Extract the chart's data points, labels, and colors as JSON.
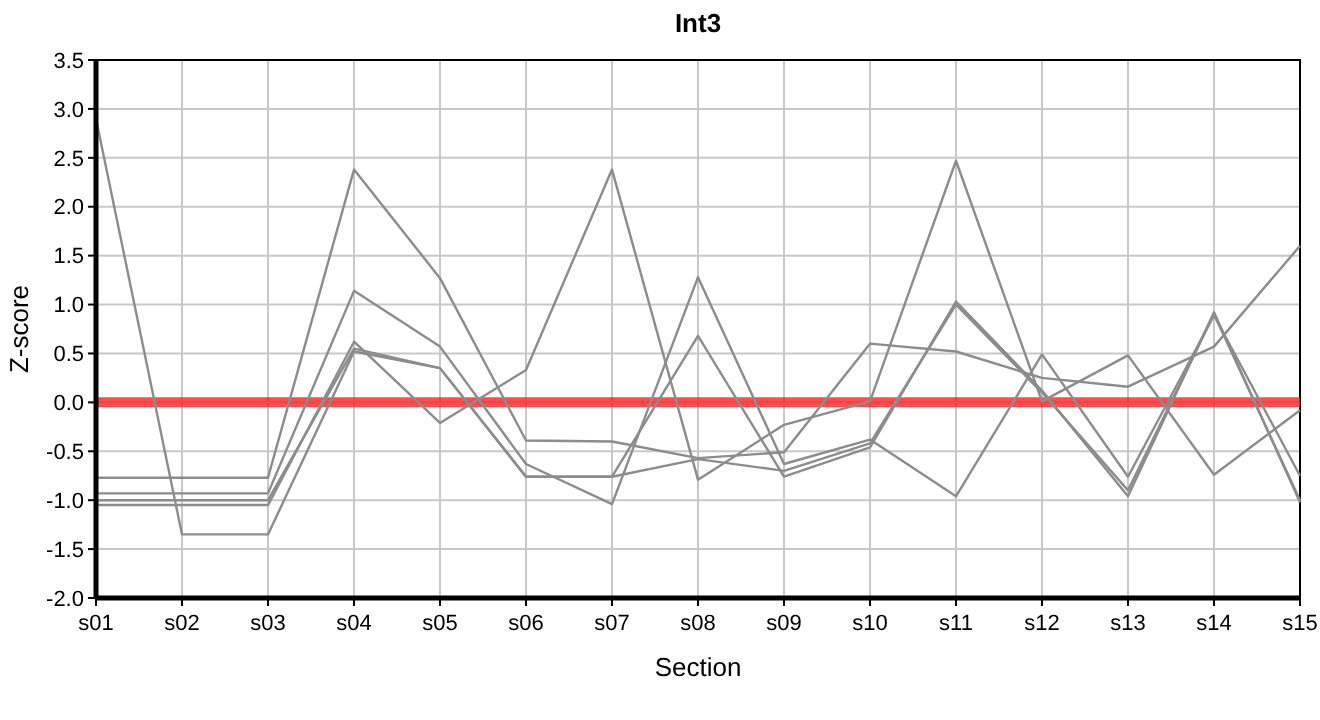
{
  "chart_data": {
    "type": "line",
    "title": "Int3",
    "xlabel": "Section",
    "ylabel": "Z-score",
    "categories": [
      "s01",
      "s02",
      "s03",
      "s04",
      "s05",
      "s06",
      "s07",
      "s08",
      "s09",
      "s10",
      "s11",
      "s12",
      "s13",
      "s14",
      "s15"
    ],
    "series": [
      {
        "color": "#8c8c8c",
        "values": [
          2.9,
          -1.35,
          -1.35,
          0.52,
          0.35,
          -0.76,
          -0.76,
          0.68,
          -0.76,
          -0.46,
          1.03,
          0.12,
          -0.96,
          0.92,
          -1.02
        ]
      },
      {
        "color": "#8c8c8c",
        "values": [
          -0.77,
          -0.77,
          -0.77,
          2.38,
          1.27,
          -0.39,
          -0.4,
          -0.57,
          -0.51,
          0.6,
          0.52,
          0.25,
          0.16,
          0.57,
          1.6
        ]
      },
      {
        "color": "#8c8c8c",
        "values": [
          -0.93,
          -0.93,
          -0.93,
          1.14,
          0.57,
          -0.63,
          -1.04,
          1.28,
          -0.63,
          -0.38,
          -0.96,
          0.49,
          -0.76,
          0.89,
          -0.75
        ]
      },
      {
        "color": "#8c8c8c",
        "values": [
          -1.05,
          -1.05,
          -1.05,
          0.62,
          -0.21,
          0.33,
          2.38,
          -0.79,
          -0.23,
          0.01,
          2.47,
          0.01,
          0.48,
          -0.74,
          -0.08
        ]
      },
      {
        "color": "#8c8c8c",
        "values": [
          -1.0,
          -1.0,
          -1.0,
          0.55,
          0.35,
          -0.76,
          -0.76,
          -0.58,
          -0.7,
          -0.42,
          1.0,
          0.1,
          -0.9,
          0.9,
          -1.0
        ]
      }
    ],
    "ylim": [
      -2,
      3.5
    ],
    "yticks": [
      {
        "value": -2,
        "label": "-2.0"
      },
      {
        "value": -1.5,
        "label": "-1.5"
      },
      {
        "value": -1,
        "label": "-1.0"
      },
      {
        "value": -0.5,
        "label": "-0.5"
      },
      {
        "value": 0,
        "label": "0.0"
      },
      {
        "value": 0.5,
        "label": "0.5"
      },
      {
        "value": 1,
        "label": "1.0"
      },
      {
        "value": 1.5,
        "label": "1.5"
      },
      {
        "value": 2,
        "label": "2.0"
      },
      {
        "value": 2.5,
        "label": "2.5"
      },
      {
        "value": 3,
        "label": "3.0"
      },
      {
        "value": 3.5,
        "label": "3.5"
      }
    ],
    "grid": true,
    "marker": "none",
    "line_style": "solid",
    "ref_lines": [
      {
        "axis": "y",
        "value": 0,
        "color": "#ff2020"
      }
    ]
  }
}
